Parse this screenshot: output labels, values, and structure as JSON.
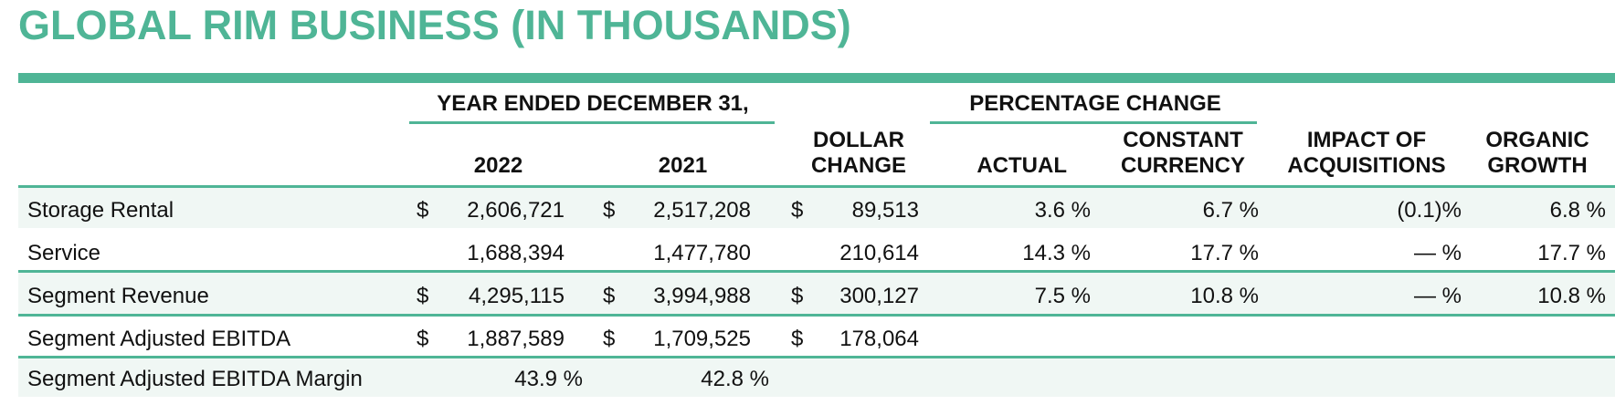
{
  "title": "GLOBAL RIM BUSINESS (IN THOUSANDS)",
  "headers": {
    "group_year": "YEAR ENDED DECEMBER 31,",
    "group_pct": "PERCENTAGE CHANGE",
    "col_2022": "2022",
    "col_2021": "2021",
    "dollar_change_1": "DOLLAR",
    "dollar_change_2": "CHANGE",
    "actual": "ACTUAL",
    "constant_1": "CONSTANT",
    "constant_2": "CURRENCY",
    "impact_1": "IMPACT OF",
    "impact_2": "ACQUISITIONS",
    "organic_1": "ORGANIC",
    "organic_2": "GROWTH"
  },
  "currency_symbol": "$",
  "rows": [
    {
      "label": "Storage Rental",
      "v2022": "2,606,721",
      "v2021": "2,517,208",
      "dollar_change": "89,513",
      "actual": "3.6 %",
      "constant": "6.7 %",
      "impact": "(0.1)%",
      "organic": "6.8 %"
    },
    {
      "label": "Service",
      "v2022": "1,688,394",
      "v2021": "1,477,780",
      "dollar_change": "210,614",
      "actual": "14.3 %",
      "constant": "17.7 %",
      "impact": "— %",
      "organic": "17.7 %"
    },
    {
      "label": "Segment Revenue",
      "v2022": "4,295,115",
      "v2021": "3,994,988",
      "dollar_change": "300,127",
      "actual": "7.5 %",
      "constant": "10.8 %",
      "impact": "— %",
      "organic": "10.8 %"
    },
    {
      "label": "Segment Adjusted EBITDA",
      "v2022": "1,887,589",
      "v2021": "1,709,525",
      "dollar_change": "178,064"
    },
    {
      "label": "Segment Adjusted EBITDA Margin",
      "v2022": "43.9 %",
      "v2021": "42.8 %"
    }
  ],
  "colors": {
    "accent": "#4fb596",
    "band": "#f0f7f4"
  }
}
